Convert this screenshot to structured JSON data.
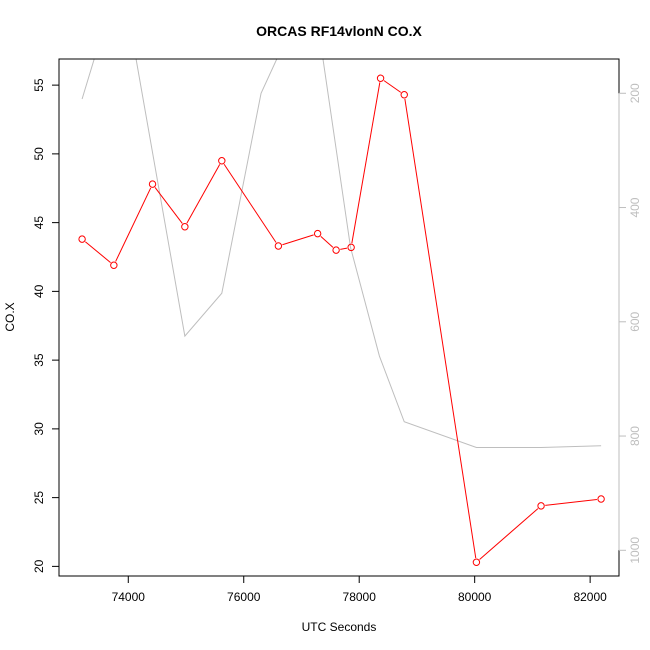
{
  "chart_data": {
    "type": "line",
    "title": "ORCAS RF14vlonN CO.X",
    "xlabel": "UTC Seconds",
    "ylabel": "CO.X",
    "xlim": [
      72800,
      82500
    ],
    "ylim": [
      19.3,
      56.9
    ],
    "x_ticks": [
      74000,
      76000,
      78000,
      80000,
      82000
    ],
    "y_ticks": [
      20,
      25,
      30,
      35,
      40,
      45,
      50,
      55
    ],
    "y2_ticks": [
      200,
      400,
      600,
      800,
      1000
    ],
    "y2lim": [
      1045,
      140
    ],
    "y2_reversed": true,
    "series": [
      {
        "color": "#ff0000",
        "marker": "circle",
        "axis": "left",
        "x": [
          73200,
          73750,
          74420,
          74980,
          75620,
          76600,
          77280,
          77600,
          77860,
          78370,
          78780,
          80030,
          81150,
          82190
        ],
        "y": [
          43.8,
          41.9,
          47.8,
          44.7,
          49.5,
          43.3,
          44.2,
          43.0,
          43.2,
          55.5,
          54.3,
          20.3,
          24.4,
          24.9
        ]
      },
      {
        "color": "#bebebe",
        "marker": "none",
        "axis": "right",
        "x": [
          73200,
          73500,
          74100,
          74980,
          75620,
          76300,
          76800,
          77300,
          77850,
          78350,
          78780,
          80030,
          81150,
          82190
        ],
        "y": [
          210,
          110,
          120,
          625,
          550,
          200,
          90,
          90,
          470,
          660,
          775,
          820,
          820,
          817
        ]
      }
    ]
  }
}
